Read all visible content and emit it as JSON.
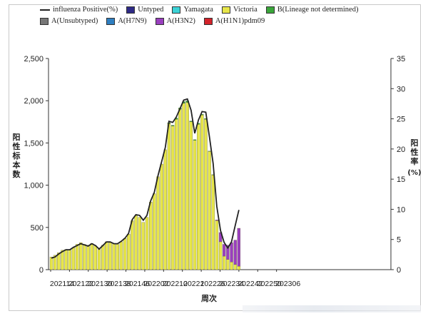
{
  "legend": [
    {
      "label": "influenza Positive(%)",
      "kind": "line",
      "color": "#222222",
      "icon": "line-icon"
    },
    {
      "label": "Untyped",
      "kind": "box",
      "color": "#2e2a86",
      "icon": "square-icon"
    },
    {
      "label": "Yamagata",
      "kind": "box",
      "color": "#3cd2d6",
      "icon": "square-icon"
    },
    {
      "label": "Victoria",
      "kind": "box",
      "color": "#e7e64a",
      "icon": "square-icon"
    },
    {
      "label": "B(Lineage not determined)",
      "kind": "box",
      "color": "#3aa63a",
      "icon": "square-icon"
    },
    {
      "label": "A(Unsubtyped)",
      "kind": "box",
      "color": "#777777",
      "icon": "square-icon"
    },
    {
      "label": "A(H7N9)",
      "kind": "box",
      "color": "#2f7fc1",
      "icon": "square-icon"
    },
    {
      "label": "A(H3N2)",
      "kind": "box",
      "color": "#9a3fbf",
      "icon": "square-icon"
    },
    {
      "label": "A(H1N1)pdm09",
      "kind": "box",
      "color": "#d4232a",
      "icon": "square-icon"
    }
  ],
  "axis_text": {
    "y_left": "阳性标本数",
    "y_right_main": "阳性率",
    "y_right_unit": "(%)",
    "x": "周次"
  },
  "chart_data": {
    "type": "bar",
    "xlabel": "周次",
    "ylabel": "阳性标本数",
    "ylabel_right": "阳性率 (%)",
    "ylim": [
      0,
      2500
    ],
    "ylim_right": [
      0,
      35
    ],
    "yticks": [
      "0",
      "500",
      "1,000",
      "1,500",
      "2,000",
      "2,500"
    ],
    "yticks_right": [
      "0",
      "5",
      "10",
      "15",
      "20",
      "25",
      "30",
      "35"
    ],
    "xticks": [
      "202114",
      "202122",
      "202130",
      "202138",
      "202146",
      "202202",
      "202210",
      "20221",
      "202226",
      "202234",
      "202242",
      "202250",
      "202306"
    ],
    "n_weeks": 52,
    "grid": false,
    "legend_position": "top",
    "series": [
      {
        "name": "Victoria",
        "color": "#e7e64a",
        "values": [
          150,
          170,
          200,
          230,
          240,
          230,
          260,
          300,
          320,
          300,
          290,
          310,
          280,
          240,
          290,
          330,
          320,
          310,
          300,
          330,
          370,
          420,
          580,
          640,
          620,
          560,
          620,
          800,
          900,
          1100,
          1250,
          1420,
          1730,
          1700,
          1780,
          1900,
          1970,
          1980,
          1750,
          1530,
          1720,
          1830,
          1780,
          1400,
          1120,
          580,
          330,
          160,
          120,
          90,
          60,
          40
        ]
      },
      {
        "name": "A(H3N2)",
        "color": "#9a3fbf",
        "values": [
          0,
          0,
          0,
          0,
          0,
          0,
          0,
          0,
          0,
          0,
          0,
          0,
          0,
          0,
          0,
          0,
          0,
          0,
          0,
          0,
          0,
          0,
          0,
          0,
          0,
          0,
          0,
          0,
          0,
          0,
          0,
          0,
          0,
          0,
          0,
          0,
          0,
          0,
          0,
          0,
          0,
          0,
          0,
          0,
          0,
          10,
          110,
          140,
          170,
          230,
          290,
          450
        ]
      },
      {
        "name": "B(Lineage not determined)",
        "color": "#3aa63a",
        "values": [
          0,
          0,
          0,
          0,
          0,
          0,
          0,
          0,
          0,
          0,
          0,
          0,
          0,
          0,
          0,
          0,
          0,
          0,
          0,
          0,
          0,
          0,
          0,
          0,
          0,
          0,
          0,
          0,
          0,
          0,
          0,
          0,
          10,
          10,
          15,
          15,
          20,
          20,
          10,
          10,
          15,
          10,
          10,
          5,
          5,
          0,
          0,
          0,
          0,
          0,
          0,
          0
        ]
      }
    ],
    "line": {
      "name": "influenza Positive(%)",
      "color": "#222222",
      "values": [
        1.9,
        2.1,
        2.6,
        3.0,
        3.3,
        3.3,
        3.7,
        4.0,
        4.3,
        4.1,
        3.9,
        4.3,
        4.0,
        3.4,
        4.0,
        4.6,
        4.6,
        4.3,
        4.3,
        4.7,
        5.2,
        6.0,
        8.3,
        9.1,
        9.0,
        8.2,
        9.0,
        11.4,
        12.8,
        15.6,
        17.9,
        20.3,
        24.6,
        24.4,
        25.3,
        26.7,
        28.1,
        28.3,
        26.4,
        22.6,
        24.8,
        26.2,
        26.1,
        22.0,
        17.6,
        10.5,
        6.5,
        4.5,
        3.6,
        4.6,
        7.3,
        9.9
      ]
    }
  }
}
